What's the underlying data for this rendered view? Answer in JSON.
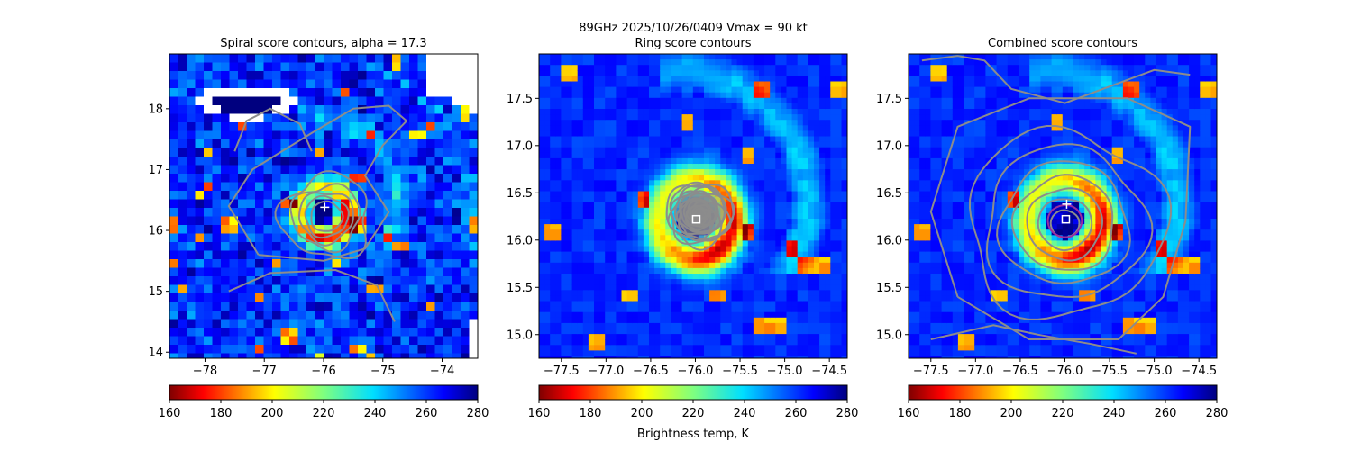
{
  "figure": {
    "suptitle_line1": "89GHz  2025/10/26/0409    Vmax = 90 kt",
    "colorbar_label": "Brightness temp, K"
  },
  "colors": {
    "contour": "#8c8c8c",
    "magenta_contour": "#9a2fa0",
    "center_marker": "#ffffff"
  },
  "colormap": {
    "name": "jet_r",
    "vmin": 160,
    "vmax": 280,
    "ticks": [
      "160",
      "180",
      "200",
      "220",
      "240",
      "260",
      "280"
    ]
  },
  "chart_data": [
    {
      "type": "heatmap",
      "title": "Spiral score contours, alpha = 17.3",
      "xlim": [
        -78.6,
        -73.4
      ],
      "ylim": [
        13.9,
        18.9
      ],
      "xticks": [
        -78,
        -77,
        -76,
        -75,
        -74
      ],
      "yticks": [
        14,
        15,
        16,
        17,
        18
      ],
      "xtick_labels": [
        "−78",
        "−77",
        "−76",
        "−75",
        "−74"
      ],
      "ytick_labels": [
        "14",
        "15",
        "16",
        "17",
        "18"
      ],
      "storm_center": {
        "lon": -76.0,
        "lat": 16.3
      },
      "eye_brightness_temp_K": 275,
      "eyewall_brightness_temp_K": 175,
      "markers": [
        {
          "symbol": "+",
          "lon": -75.98,
          "lat": 16.38
        }
      ],
      "overlay": "spiral score contours (gray)"
    },
    {
      "type": "heatmap",
      "title": "Ring score contours",
      "xlim": [
        -77.75,
        -74.3
      ],
      "ylim": [
        14.75,
        17.97
      ],
      "xticks": [
        -77.5,
        -77.0,
        -76.5,
        -76.0,
        -75.5,
        -75.0,
        -74.5
      ],
      "yticks": [
        15.0,
        15.5,
        16.0,
        16.5,
        17.0,
        17.5
      ],
      "xtick_labels": [
        "−77.5",
        "−77.0",
        "−76.5",
        "−76.0",
        "−75.5",
        "−75.0",
        "−74.5"
      ],
      "ytick_labels": [
        "15.0",
        "15.5",
        "16.0",
        "16.5",
        "17.0",
        "17.5"
      ],
      "storm_center": {
        "lon": -76.0,
        "lat": 16.22
      },
      "markers": [
        {
          "symbol": "square",
          "lon": -75.99,
          "lat": 16.22
        }
      ],
      "overlay": "ring score contours (dense gray, eye region)"
    },
    {
      "type": "heatmap",
      "title": "Combined score contours",
      "xlim": [
        -77.75,
        -74.3
      ],
      "ylim": [
        14.75,
        17.97
      ],
      "xticks": [
        -77.5,
        -77.0,
        -76.5,
        -76.0,
        -75.5,
        -75.0,
        -74.5
      ],
      "yticks": [
        15.0,
        15.5,
        16.0,
        16.5,
        17.0,
        17.5
      ],
      "xtick_labels": [
        "−77.5",
        "−77.0",
        "−76.5",
        "−76.0",
        "−75.5",
        "−75.0",
        "−74.5"
      ],
      "ytick_labels": [
        "15.0",
        "15.5",
        "16.0",
        "16.5",
        "17.0",
        "17.5"
      ],
      "storm_center": {
        "lon": -76.0,
        "lat": 16.22
      },
      "markers": [
        {
          "symbol": "+",
          "lon": -75.98,
          "lat": 16.38
        },
        {
          "symbol": "square",
          "lon": -75.99,
          "lat": 16.22
        }
      ],
      "overlay": "combined score contours (gray concentric) with magenta inner contour"
    }
  ],
  "subtitle_line2": "Ring score contours"
}
